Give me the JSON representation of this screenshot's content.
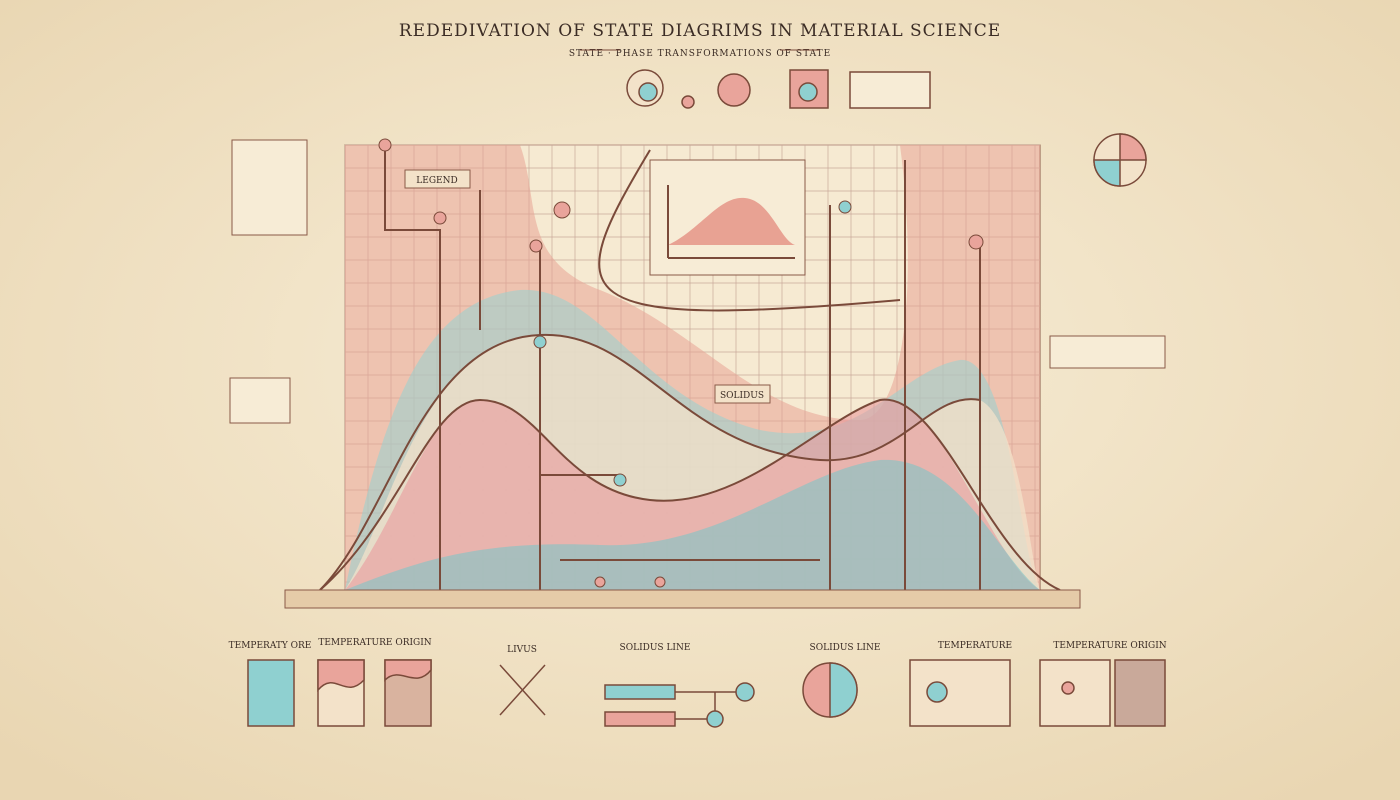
{
  "header": {
    "title": "REDEDIVATION OF STATE DIAGRIMS IN MATERIAL SCIENCE",
    "subtitle": "STATE · PHASE TRANSFORMATIONS OF STATE"
  },
  "main_diagram": {
    "inset_label": "LEGEND",
    "center_label": "SOLIDUS"
  },
  "bottom_panels": [
    {
      "label": "TEMPERATY ORE"
    },
    {
      "label": "TEMPERATURE ORIGIN"
    },
    {
      "label": "LIVUS"
    },
    {
      "label": "SOLIDUS LINE"
    },
    {
      "label": "SOLIDUS LINE"
    },
    {
      "label": "TEMPERATURE"
    },
    {
      "label": "TEMPERATURE ORIGIN"
    }
  ]
}
